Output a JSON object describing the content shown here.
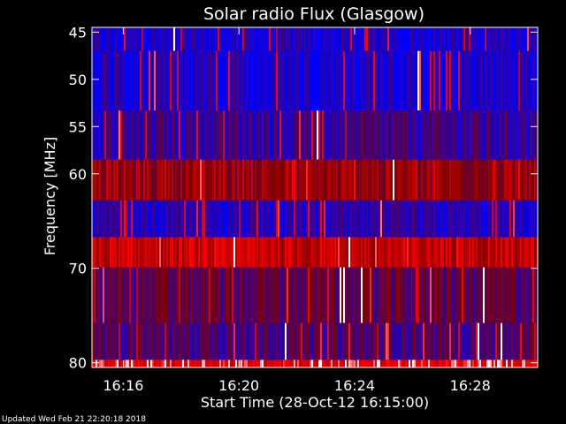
{
  "footer": {
    "updated": "Updated Wed Feb 21 22:20:18 2018"
  },
  "colors": {
    "background": "#000000",
    "frame": "#ffffff",
    "text": "#ffffff",
    "colormap_low": "#0000ff",
    "colormap_mid": "#800000",
    "colormap_high": "#ff0000",
    "colormap_peak": "#ffffff"
  },
  "chart_data": {
    "type": "heatmap",
    "title": "Solar radio Flux (Glasgow)",
    "xlabel": "Start Time (28-Oct-12 16:15:00)",
    "ylabel": "Frequency [MHz]",
    "x_unit": "minutes",
    "xlim": [
      "16:14:55",
      "16:30:20"
    ],
    "ylim": [
      80.5,
      44.5
    ],
    "y_inverted": true,
    "grid": false,
    "x_ticks": [
      {
        "value": "16:16",
        "label": "16:16"
      },
      {
        "value": "16:20",
        "label": "16:20"
      },
      {
        "value": "16:24",
        "label": "16:24"
      },
      {
        "value": "16:28",
        "label": "16:28"
      }
    ],
    "y_ticks": [
      {
        "value": 45,
        "label": "45"
      },
      {
        "value": 50,
        "label": "50"
      },
      {
        "value": 55,
        "label": "55"
      },
      {
        "value": 60,
        "label": "60"
      },
      {
        "value": 70,
        "label": "70"
      },
      {
        "value": 80,
        "label": "80"
      }
    ],
    "bands": [
      {
        "y_from": 44.5,
        "y_to": 47.0,
        "level": 0.08
      },
      {
        "y_from": 47.0,
        "y_to": 53.3,
        "level": 0.1
      },
      {
        "y_from": 53.3,
        "y_to": 58.5,
        "level": 0.22
      },
      {
        "y_from": 58.5,
        "y_to": 62.8,
        "level": 0.55
      },
      {
        "y_from": 62.8,
        "y_to": 66.7,
        "level": 0.12
      },
      {
        "y_from": 66.7,
        "y_to": 69.9,
        "level": 0.7
      },
      {
        "y_from": 69.9,
        "y_to": 75.8,
        "level": 0.35
      },
      {
        "y_from": 75.8,
        "y_to": 79.7,
        "level": 0.3
      },
      {
        "y_from": 79.7,
        "y_to": 80.5,
        "level": 0.85
      }
    ]
  }
}
